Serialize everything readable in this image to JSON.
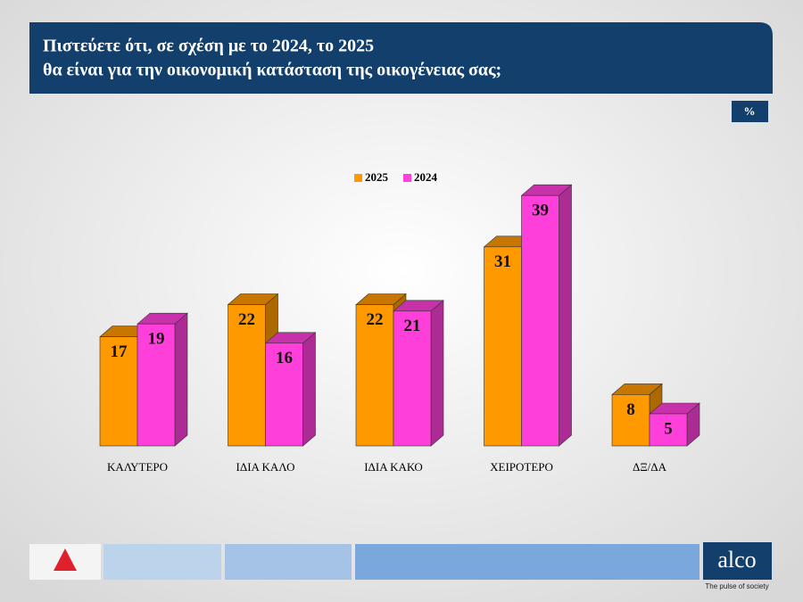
{
  "chart_data": {
    "type": "bar3d",
    "title": [
      "Πιστεύετε ότι, σε σχέση με το 2024, το 2025",
      "θα είναι για την οικονομική κατάσταση της οικογένειας σας;"
    ],
    "unit": "%",
    "categories": [
      "ΚΑΛΥΤΕΡΟ",
      "ΙΔΙΑ ΚΑΛΟ",
      "ΙΔΙΑ ΚΑΚΟ",
      "ΧΕΙΡΟΤΕΡΟ",
      "ΔΞ/ΔΑ"
    ],
    "series": [
      {
        "name": "2025",
        "color": "#ff9900",
        "values": [
          17,
          22,
          22,
          31,
          8
        ]
      },
      {
        "name": "2024",
        "color": "#ff3fd9",
        "values": [
          19,
          16,
          21,
          39,
          5
        ]
      }
    ]
  },
  "footer": {
    "brand": "alco",
    "tagline": "The pulse of society"
  }
}
